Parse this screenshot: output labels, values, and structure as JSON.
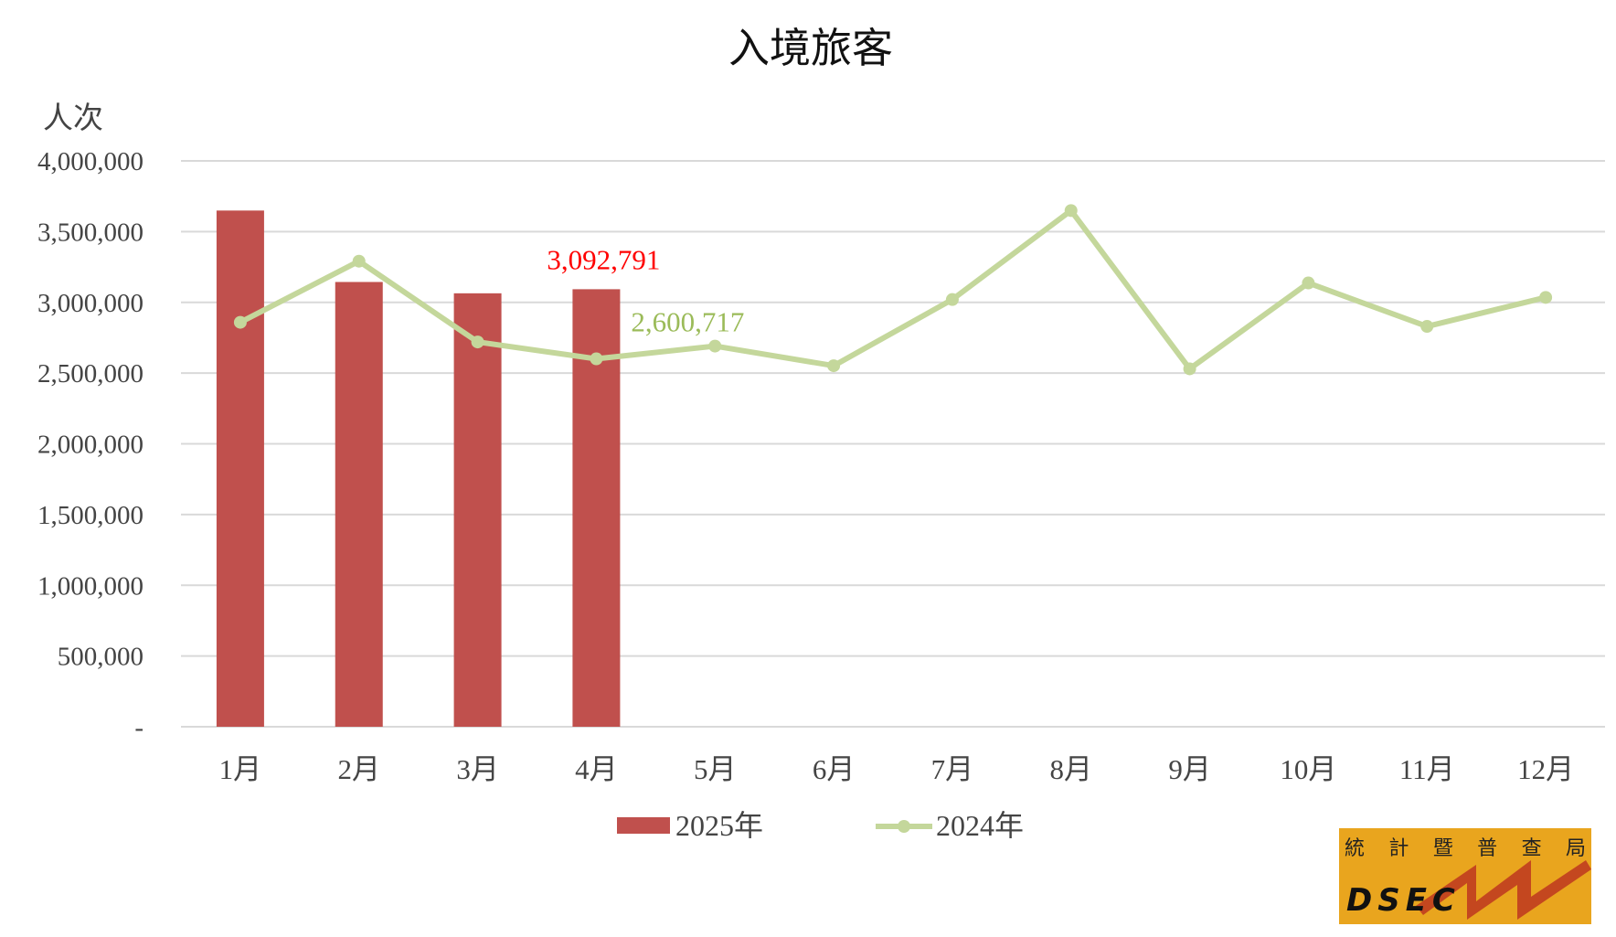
{
  "chart_data": {
    "type": "bar+line",
    "title": "入境旅客",
    "ylabel": "人次",
    "xlabel": "",
    "ylim": [
      0,
      4000000
    ],
    "yticks": [
      0,
      500000,
      1000000,
      1500000,
      2000000,
      2500000,
      3000000,
      3500000,
      4000000
    ],
    "ytick_labels": [
      "-",
      "500,000",
      "1,000,000",
      "1,500,000",
      "2,000,000",
      "2,500,000",
      "3,000,000",
      "3,500,000",
      "4,000,000"
    ],
    "categories": [
      "1月",
      "2月",
      "3月",
      "4月",
      "5月",
      "6月",
      "7月",
      "8月",
      "9月",
      "10月",
      "11月",
      "12月"
    ],
    "grid": true,
    "legend_position": "bottom",
    "series": [
      {
        "name": "2025年",
        "type": "bar",
        "color": "#c0504d",
        "values": [
          3649000,
          3144000,
          3064000,
          3092791,
          null,
          null,
          null,
          null,
          null,
          null,
          null,
          null
        ]
      },
      {
        "name": "2024年",
        "type": "line",
        "color": "#c4d79b",
        "values": [
          2859000,
          3291000,
          2720000,
          2600717,
          2691000,
          2552000,
          3020000,
          3649000,
          2530000,
          3137000,
          2830000,
          3035000
        ]
      }
    ],
    "annotations": [
      {
        "series": 0,
        "index": 3,
        "text": "3,092,791",
        "color": "#ff0000"
      },
      {
        "series": 1,
        "index": 3,
        "text": "2,600,717",
        "color": "#9bbb59"
      }
    ]
  },
  "logo": {
    "chinese": [
      "統",
      "計",
      "暨",
      "普",
      "查",
      "局"
    ],
    "english": "DSEC"
  }
}
